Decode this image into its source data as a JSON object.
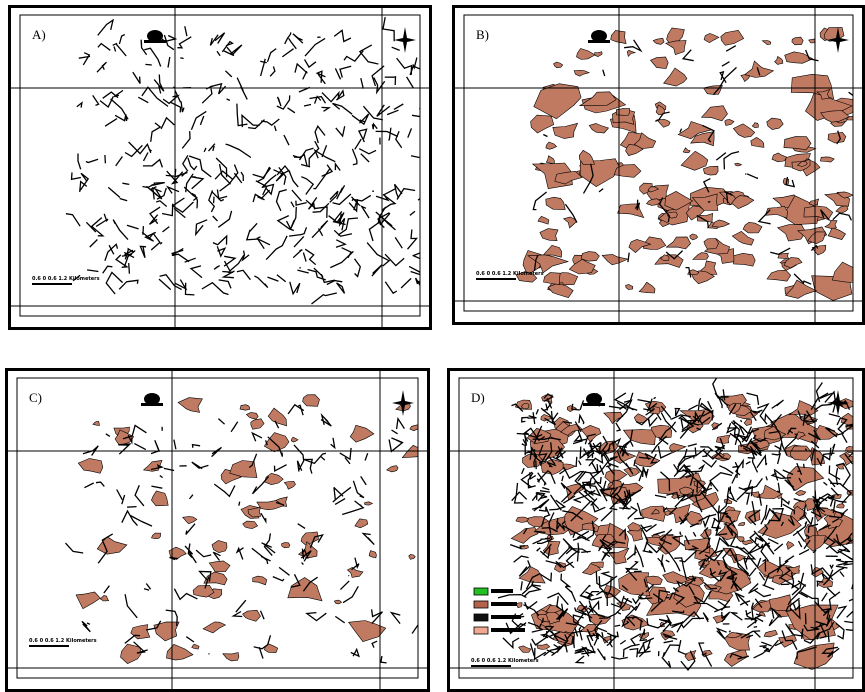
{
  "panels": [
    {
      "label": "A)",
      "scale": "0.6 0 0.6 1.2 Kilometers"
    },
    {
      "label": "B)",
      "scale": "0.6 0 0.6 1.2 Kilometers"
    },
    {
      "label": "C)",
      "scale": "0.6 0 0.6 1.2 Kilometers"
    },
    {
      "label": "D)",
      "scale": "0.6 0 0.6 1.2 Kilometers"
    }
  ]
}
